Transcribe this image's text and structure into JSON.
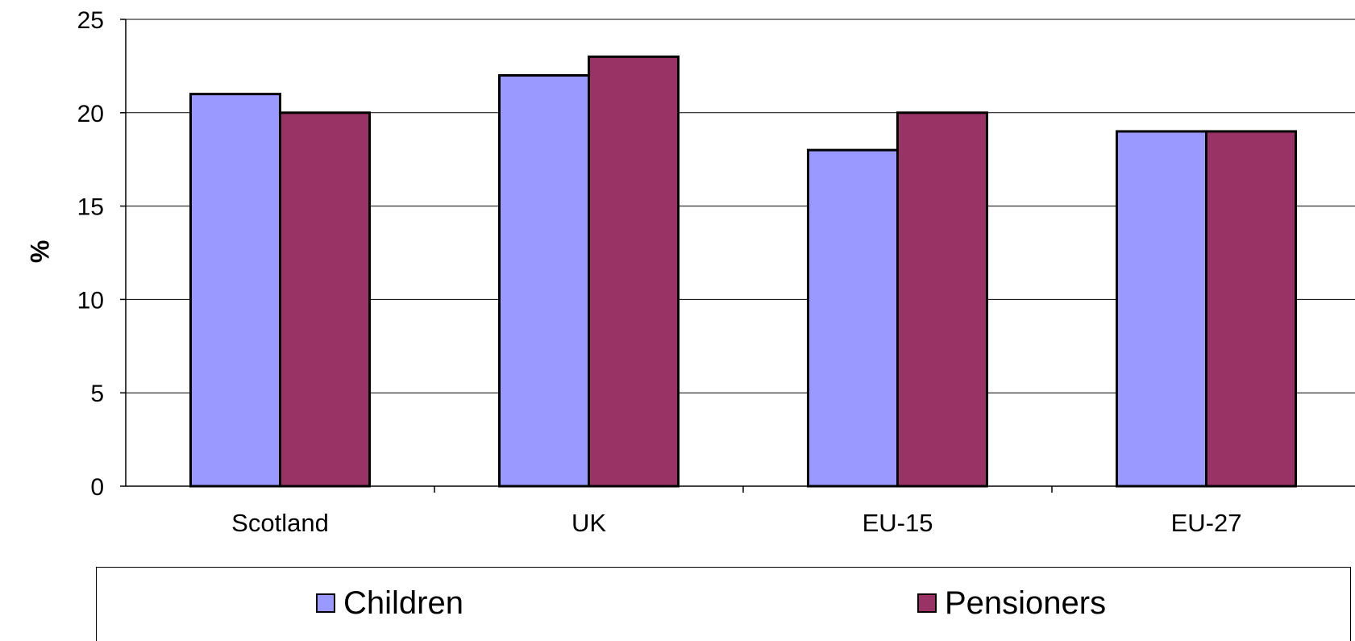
{
  "chart_data": {
    "type": "bar",
    "categories": [
      "Scotland",
      "UK",
      "EU-15",
      "EU-27"
    ],
    "series": [
      {
        "name": "Children",
        "values": [
          21,
          22,
          18,
          19
        ],
        "color": "#9999ff"
      },
      {
        "name": "Pensioners",
        "values": [
          20,
          23,
          20,
          19
        ],
        "color": "#993366"
      }
    ],
    "ylabel": "%",
    "xlabel": "",
    "ylim": [
      0,
      25
    ],
    "yticks": [
      0,
      5,
      10,
      15,
      20,
      25
    ],
    "grid": true,
    "legend_position": "bottom"
  },
  "legend": {
    "items": [
      {
        "label": "Children",
        "color": "#9999ff"
      },
      {
        "label": "Pensioners",
        "color": "#993366"
      }
    ]
  }
}
